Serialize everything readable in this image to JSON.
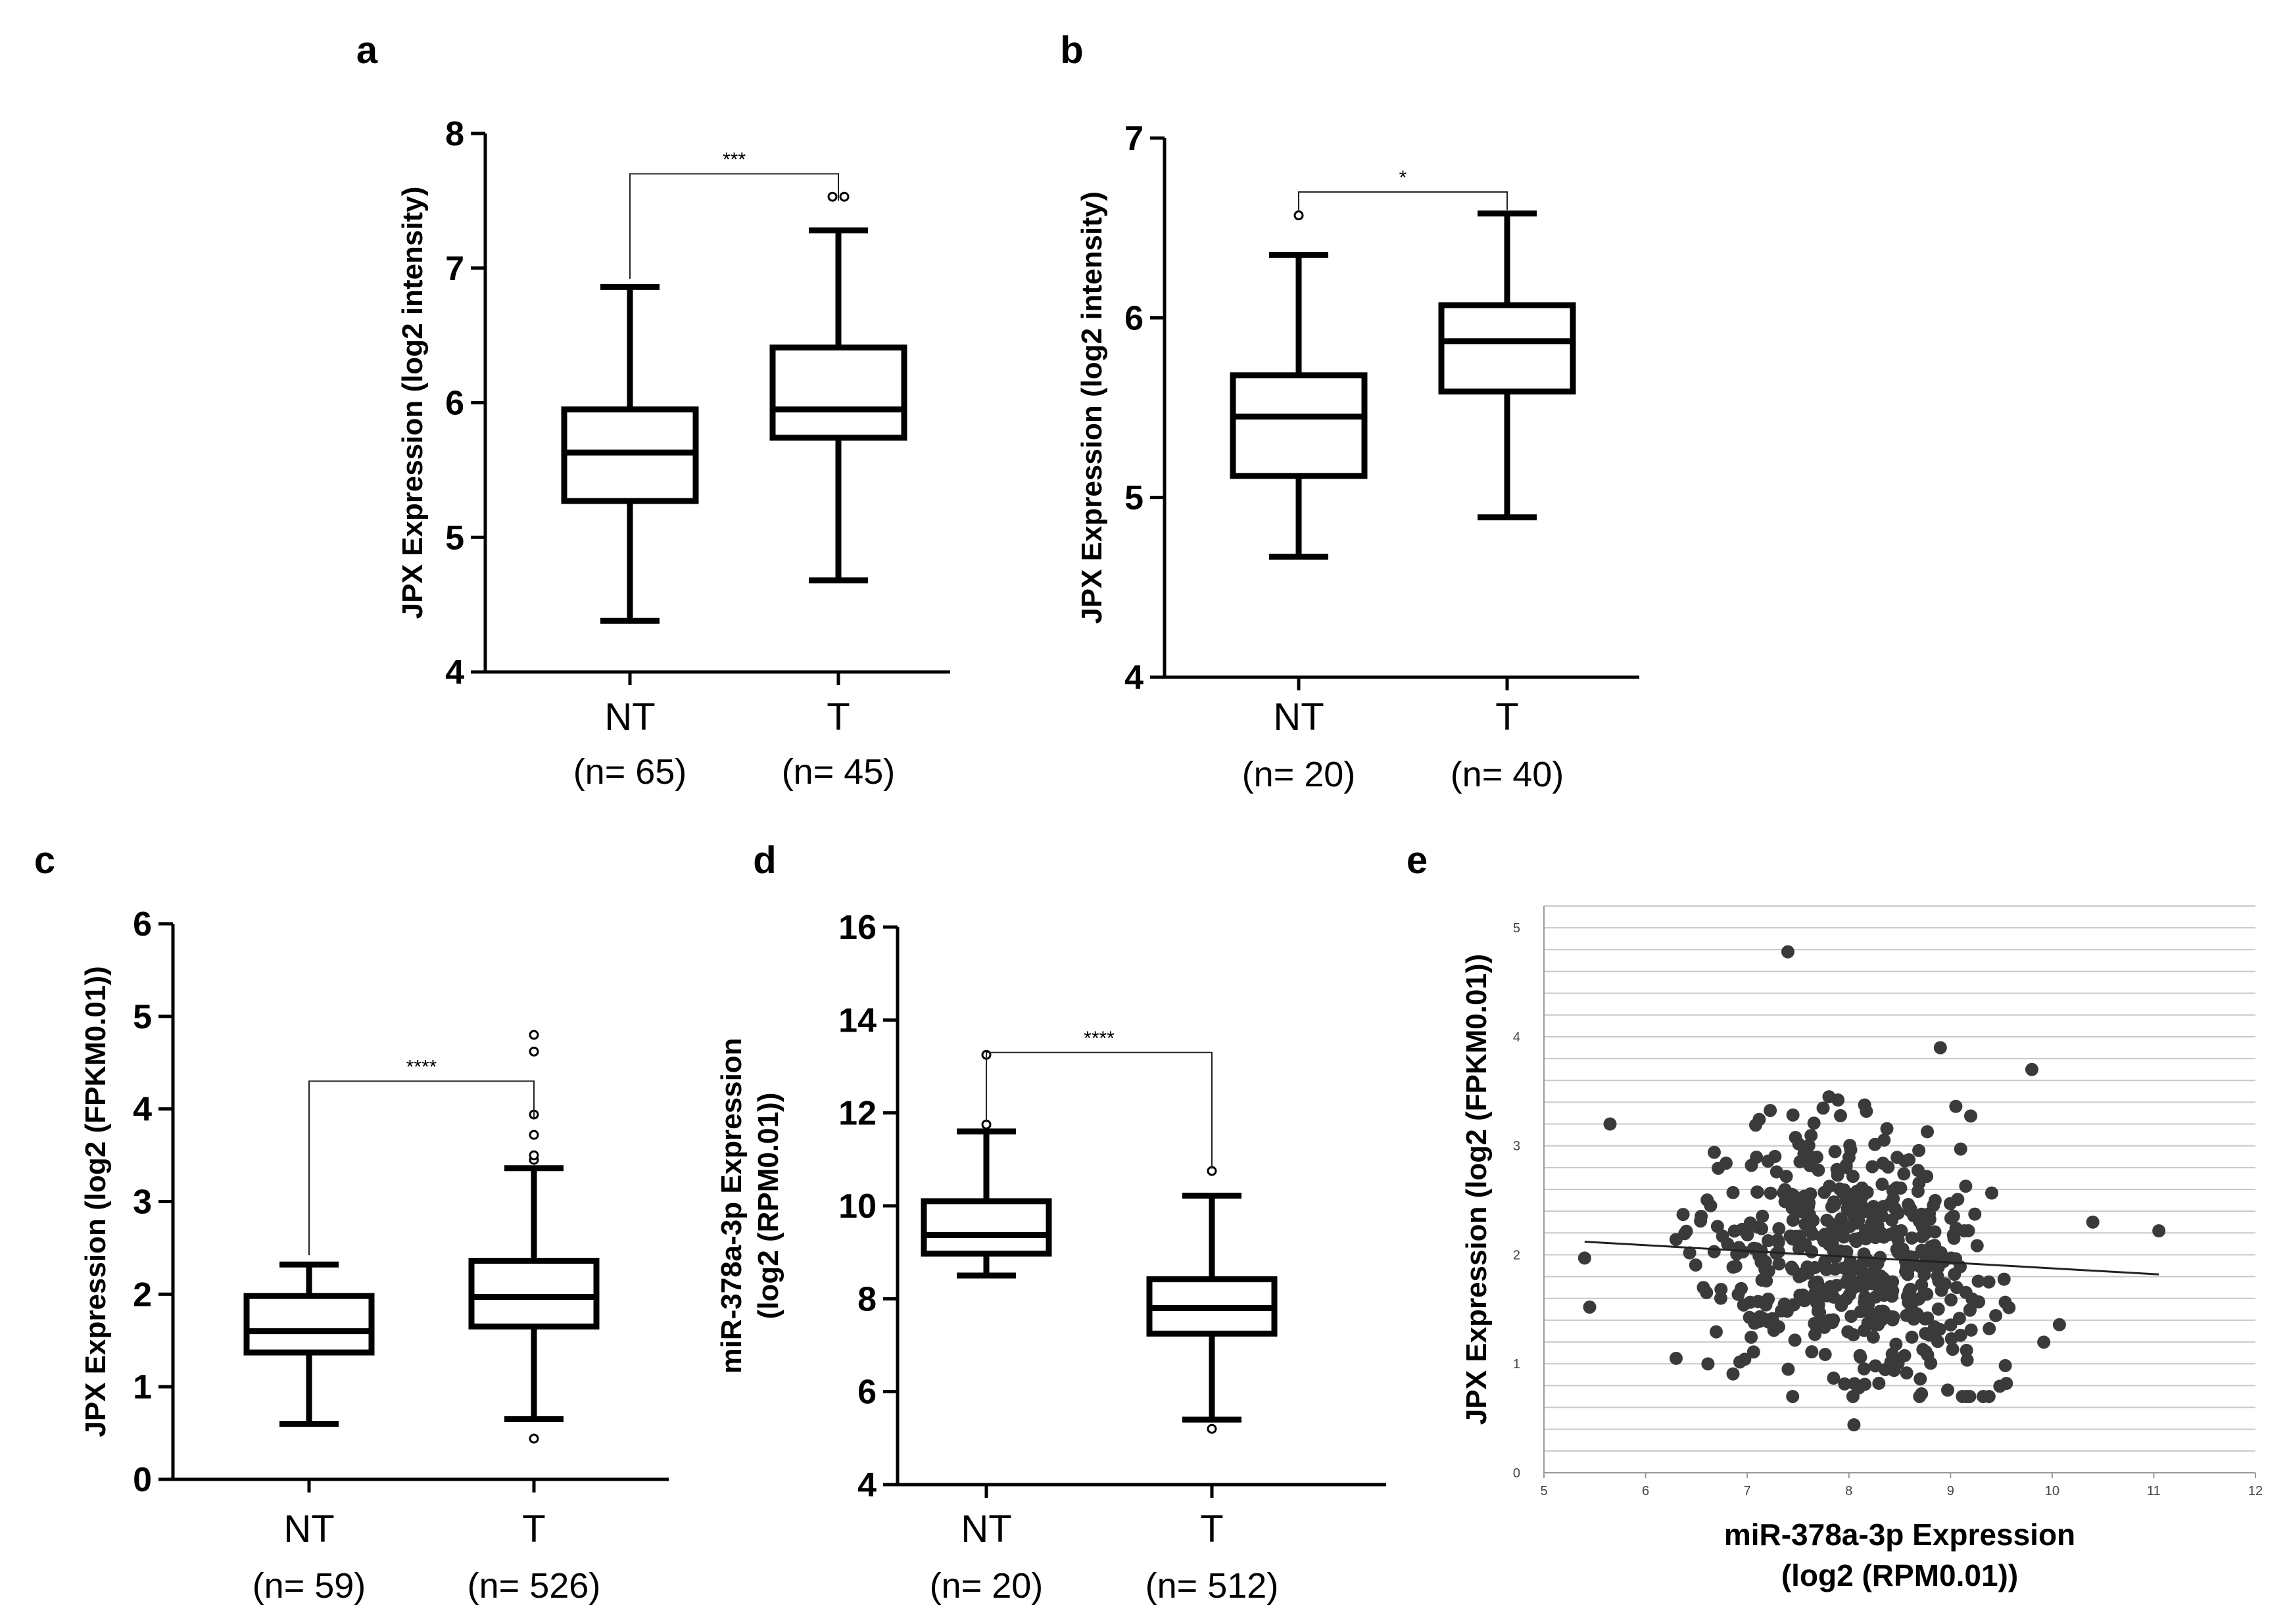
{
  "chart_data": [
    {
      "panel": "a",
      "type": "box",
      "ylabel": "JPX Expression (log2 intensity)",
      "ylim": [
        4,
        8
      ],
      "yticks": [
        "4",
        "5",
        "6",
        "7",
        "8"
      ],
      "categories": [
        {
          "name": "NT",
          "n_label": "(n= 65)",
          "whisker_low": 4.38,
          "q1": 5.27,
          "median": 5.63,
          "q3": 5.95,
          "whisker_high": 6.86,
          "outliers": []
        },
        {
          "name": "T",
          "n_label": "(n= 45)",
          "whisker_low": 4.68,
          "q1": 5.74,
          "median": 5.95,
          "q3": 6.41,
          "whisker_high": 7.28,
          "outliers": [
            7.53,
            7.53
          ]
        }
      ],
      "significance": {
        "label": "***",
        "y": 7.7,
        "left_drop_to": 6.92,
        "right_drop_to": 7.5
      }
    },
    {
      "panel": "b",
      "type": "box",
      "ylabel": "JPX Expression (log2 intensity)",
      "ylim": [
        4,
        7
      ],
      "yticks": [
        "4",
        "5",
        "6",
        "7"
      ],
      "categories": [
        {
          "name": "NT",
          "n_label": "(n= 20)",
          "whisker_low": 4.67,
          "q1": 5.12,
          "median": 5.45,
          "q3": 5.68,
          "whisker_high": 6.35,
          "outliers": [
            6.57
          ]
        },
        {
          "name": "T",
          "n_label": "(n= 40)",
          "whisker_low": 4.89,
          "q1": 5.59,
          "median": 5.87,
          "q3": 6.07,
          "whisker_high": 6.58,
          "outliers": []
        }
      ],
      "significance": {
        "label": "*",
        "y": 6.7,
        "left_drop_to": 6.6,
        "right_drop_to": 6.6
      }
    },
    {
      "panel": "c",
      "type": "box",
      "ylabel": "JPX Expression (log2 (FPKM0.01))",
      "ylim": [
        0,
        6
      ],
      "yticks": [
        "0",
        "1",
        "2",
        "3",
        "4",
        "5",
        "6"
      ],
      "categories": [
        {
          "name": "NT",
          "n_label": "(n= 59)",
          "whisker_low": 0.6,
          "q1": 1.37,
          "median": 1.6,
          "q3": 1.98,
          "whisker_high": 2.32,
          "outliers": []
        },
        {
          "name": "T",
          "n_label": "(n= 526)",
          "whisker_low": 0.65,
          "q1": 1.65,
          "median": 1.97,
          "q3": 2.36,
          "whisker_high": 3.36,
          "outliers": [
            0.44,
            3.45,
            3.5,
            3.72,
            3.94,
            4.62,
            4.8
          ]
        }
      ],
      "significance": {
        "label": "****",
        "y": 4.3,
        "left_drop_to": 2.42,
        "right_drop_to": 3.9
      }
    },
    {
      "panel": "d",
      "type": "box",
      "ylabel": "miR-378a-3p Expression\n(log2 (RPM0.01))",
      "ylim": [
        4,
        16
      ],
      "yticks": [
        "4",
        "6",
        "8",
        "10",
        "12",
        "14",
        "16"
      ],
      "categories": [
        {
          "name": "NT",
          "n_label": "(n= 20)",
          "whisker_low": 8.5,
          "q1": 8.97,
          "median": 9.37,
          "q3": 10.1,
          "whisker_high": 11.6,
          "outliers": [
            11.75,
            13.25
          ]
        },
        {
          "name": "T",
          "n_label": "(n= 512)",
          "whisker_low": 5.4,
          "q1": 7.25,
          "median": 7.8,
          "q3": 8.42,
          "whisker_high": 10.22,
          "outliers": [
            5.2,
            10.75
          ]
        }
      ],
      "significance": {
        "label": "****",
        "y": 13.3,
        "left_drop_to": 11.8,
        "right_drop_to": 10.8
      }
    },
    {
      "panel": "e",
      "type": "scatter",
      "xlabel": "miR-378a-3p Expression\n(log2 (RPM0.01))",
      "ylabel": "JPX Expression (log2 (FPKM0.01))",
      "xlim": [
        5,
        12
      ],
      "ylim": [
        0,
        5.2
      ],
      "xticks": [
        "5",
        "6",
        "7",
        "8",
        "9",
        "10",
        "11",
        "12"
      ],
      "yticks": [
        "0",
        "1",
        "2",
        "3",
        "4",
        "5"
      ],
      "approx_points": 526,
      "notable_points": [
        {
          "x": 7.4,
          "y": 4.78
        },
        {
          "x": 8.9,
          "y": 3.9
        },
        {
          "x": 9.8,
          "y": 3.7
        },
        {
          "x": 11.05,
          "y": 2.22
        },
        {
          "x": 10.4,
          "y": 2.3
        },
        {
          "x": 5.4,
          "y": 1.97
        },
        {
          "x": 5.45,
          "y": 1.52
        },
        {
          "x": 8.05,
          "y": 0.44
        },
        {
          "x": 8.1,
          "y": 0.78
        },
        {
          "x": 6.3,
          "y": 1.05
        },
        {
          "x": 5.65,
          "y": 3.2
        },
        {
          "x": 9.55,
          "y": 0.82
        }
      ],
      "cloud_center": {
        "x": 8.0,
        "y": 2.0
      },
      "cloud_spread": {
        "x": 0.75,
        "y": 0.55
      },
      "trend_line": [
        {
          "x": 5.4,
          "y": 2.12
        },
        {
          "x": 11.05,
          "y": 1.82
        }
      ],
      "colors": {
        "points": "#3a3a3a",
        "grid": "#c8c8c8"
      }
    }
  ]
}
